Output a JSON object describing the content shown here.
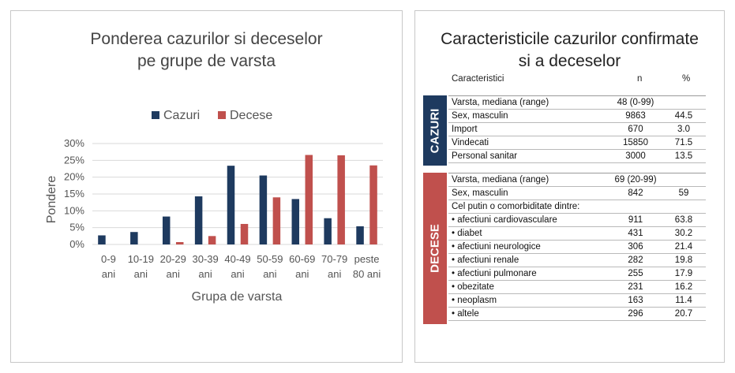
{
  "chart_panel": {
    "title_line1": "Ponderea cazurilor si deceselor",
    "title_line2": "pe grupe de varsta"
  },
  "chart_data": {
    "type": "bar",
    "title": "Ponderea cazurilor si deceselor pe grupe de varsta",
    "xlabel": "Grupa de varsta",
    "ylabel": "Pondere",
    "categories": [
      [
        "0-9",
        "ani"
      ],
      [
        "10-19",
        "ani"
      ],
      [
        "20-29",
        "ani"
      ],
      [
        "30-39",
        "ani"
      ],
      [
        "40-49",
        "ani"
      ],
      [
        "50-59",
        "ani"
      ],
      [
        "60-69",
        "ani"
      ],
      [
        "70-79",
        "ani"
      ],
      [
        "peste",
        "80 ani"
      ]
    ],
    "series": [
      {
        "name": "Cazuri",
        "color": "#1e3a5f",
        "values": [
          2.7,
          3.7,
          8.3,
          14.3,
          23.4,
          20.5,
          13.5,
          7.8,
          5.4
        ]
      },
      {
        "name": "Decese",
        "color": "#c0504d",
        "values": [
          0.0,
          0.0,
          0.7,
          2.5,
          6.1,
          14.0,
          26.6,
          26.5,
          23.5
        ]
      }
    ],
    "ylim": [
      0,
      30
    ],
    "yticks": [
      "0%",
      "5%",
      "10%",
      "15%",
      "20%",
      "25%",
      "30%"
    ],
    "grid": true,
    "legend": "top"
  },
  "table_panel": {
    "title_line1": "Caracteristicile cazurilor confirmate",
    "title_line2": "si a deceselor",
    "headers": {
      "label": "Caracteristici",
      "n": "n",
      "pct": "%"
    },
    "groups": [
      {
        "name": "CAZURI",
        "color": "#1e3a5f",
        "rows": [
          {
            "label": "Varsta, mediana (range)",
            "n": "48 (0-99)",
            "pct": ""
          },
          {
            "label": "Sex, masculin",
            "n": "9863",
            "pct": "44.5"
          },
          {
            "label": "Import",
            "n": "670",
            "pct": "3.0"
          },
          {
            "label": "Vindecati",
            "n": "15850",
            "pct": "71.5"
          },
          {
            "label": "Personal sanitar",
            "n": "3000",
            "pct": "13.5"
          }
        ]
      },
      {
        "name": "DECESE",
        "color": "#c0504d",
        "rows": [
          {
            "label": "Varsta, mediana (range)",
            "n": "69 (20-99)",
            "pct": ""
          },
          {
            "label": "Sex, masculin",
            "n": "842",
            "pct": "59"
          },
          {
            "label": "Cel putin o comorbiditate dintre:",
            "n": "",
            "pct": ""
          },
          {
            "label": "• afectiuni cardiovasculare",
            "n": "911",
            "pct": "63.8"
          },
          {
            "label": "• diabet",
            "n": "431",
            "pct": "30.2"
          },
          {
            "label": "• afectiuni neurologice",
            "n": "306",
            "pct": "21.4"
          },
          {
            "label": "• afectiuni renale",
            "n": "282",
            "pct": "19.8"
          },
          {
            "label": "• afectiuni pulmonare",
            "n": "255",
            "pct": "17.9"
          },
          {
            "label": "• obezitate",
            "n": "231",
            "pct": "16.2"
          },
          {
            "label": "• neoplasm",
            "n": "163",
            "pct": "11.4"
          },
          {
            "label": "• altele",
            "n": "296",
            "pct": "20.7"
          }
        ]
      }
    ]
  }
}
